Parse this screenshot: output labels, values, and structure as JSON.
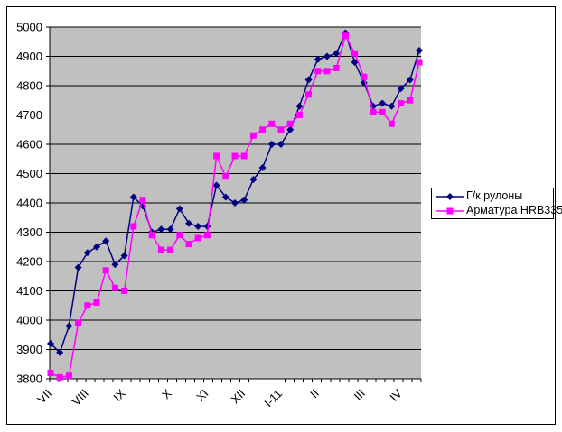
{
  "chart_data": {
    "type": "line",
    "title": "",
    "plot_bg": "#c0c0c0",
    "grid": true,
    "legend_position": "right",
    "y_axis": {
      "min": 3800,
      "max": 5000,
      "step": 100
    },
    "y_tick_labels": [
      "3800",
      "3900",
      "4000",
      "4100",
      "4200",
      "4300",
      "4400",
      "4500",
      "4600",
      "4700",
      "4800",
      "4900",
      "5000"
    ],
    "n_points": 41,
    "x_tick_labels": [
      {
        "i": 0,
        "label": "VII"
      },
      {
        "i": 4,
        "label": "VIII"
      },
      {
        "i": 8,
        "label": "IX"
      },
      {
        "i": 13,
        "label": "X"
      },
      {
        "i": 17,
        "label": "XI"
      },
      {
        "i": 21,
        "label": "XII"
      },
      {
        "i": 25,
        "label": "I-11"
      },
      {
        "i": 29,
        "label": "II"
      },
      {
        "i": 34,
        "label": "III"
      },
      {
        "i": 38,
        "label": "IV"
      }
    ],
    "series": [
      {
        "name": "Г/к рулоны",
        "color": "#000080",
        "marker": "diamond",
        "values": [
          3920,
          3890,
          3980,
          4180,
          4230,
          4250,
          4270,
          4190,
          4220,
          4420,
          4390,
          4300,
          4310,
          4310,
          4380,
          4330,
          4320,
          4320,
          4460,
          4420,
          4400,
          4410,
          4480,
          4520,
          4600,
          4600,
          4650,
          4730,
          4820,
          4890,
          4900,
          4910,
          4980,
          4880,
          4810,
          4730,
          4740,
          4730,
          4790,
          4820,
          4920
        ]
      },
      {
        "name": "Арматура HRB335",
        "color": "#FF00FF",
        "marker": "square",
        "values": [
          3820,
          3805,
          3810,
          3990,
          4050,
          4060,
          4170,
          4110,
          4100,
          4320,
          4410,
          4290,
          4240,
          4240,
          4290,
          4260,
          4280,
          4290,
          4560,
          4490,
          4560,
          4560,
          4630,
          4650,
          4670,
          4650,
          4670,
          4700,
          4770,
          4850,
          4850,
          4860,
          4970,
          4910,
          4830,
          4710,
          4710,
          4670,
          4740,
          4750,
          4880
        ]
      }
    ]
  }
}
